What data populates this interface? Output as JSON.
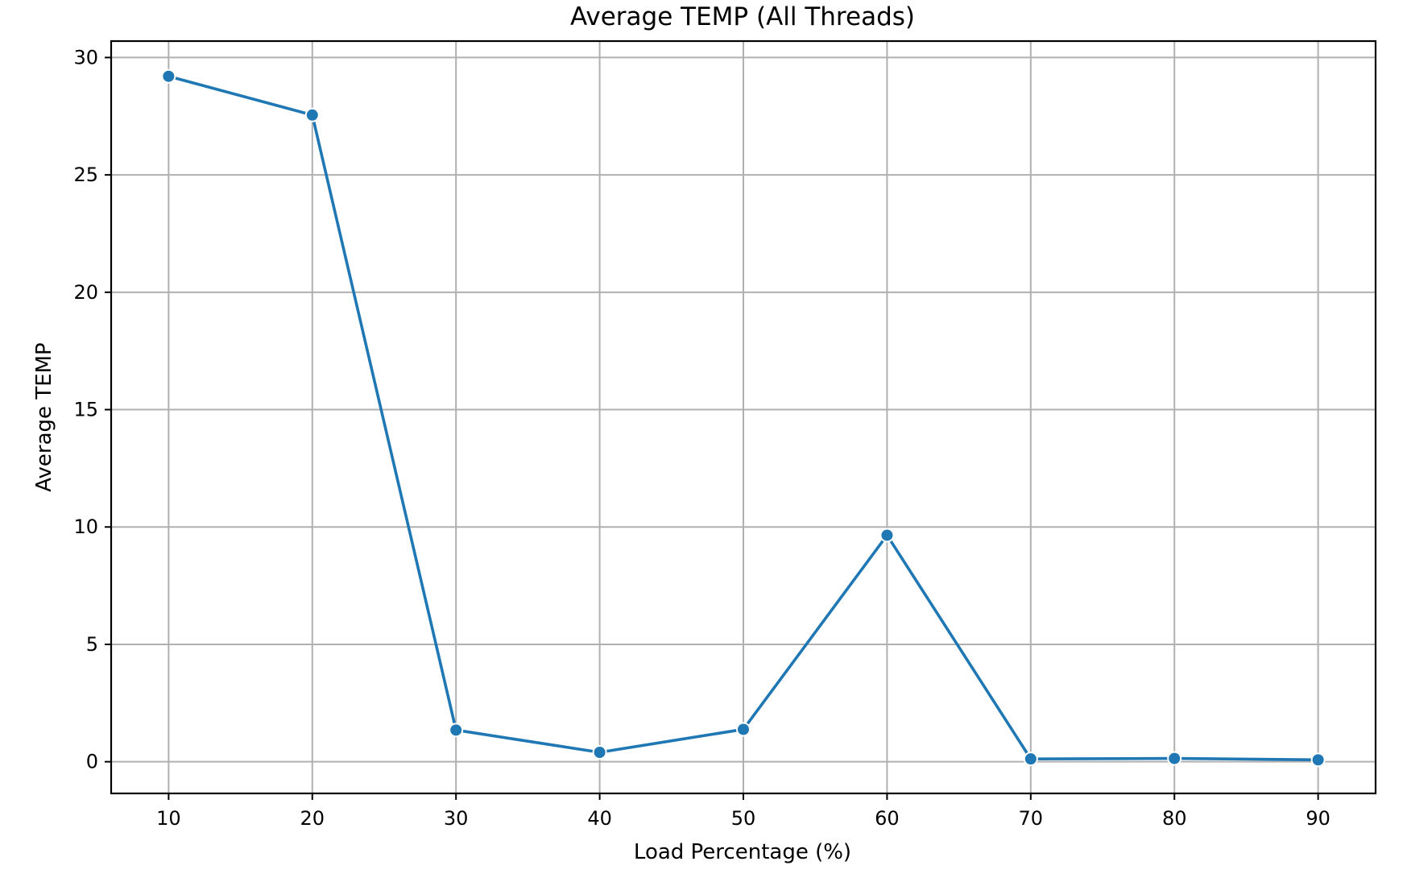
{
  "chart_data": {
    "type": "line",
    "title": "Average TEMP (All Threads)",
    "xlabel": "Load Percentage (%)",
    "ylabel": "Average TEMP",
    "x": [
      10,
      20,
      30,
      40,
      50,
      60,
      70,
      80,
      90
    ],
    "series": [
      {
        "values": [
          29.2,
          27.55,
          1.35,
          0.4,
          1.38,
          9.65,
          0.12,
          0.14,
          0.08
        ],
        "color": "#1f77b4"
      }
    ],
    "x_ticks": [
      "10",
      "20",
      "30",
      "40",
      "50",
      "60",
      "70",
      "80",
      "90"
    ],
    "y_ticks": [
      "0",
      "5",
      "10",
      "15",
      "20",
      "25",
      "30"
    ],
    "xlim": [
      6,
      94
    ],
    "ylim": [
      -1.35,
      30.7
    ],
    "grid": true,
    "legend": "none"
  }
}
